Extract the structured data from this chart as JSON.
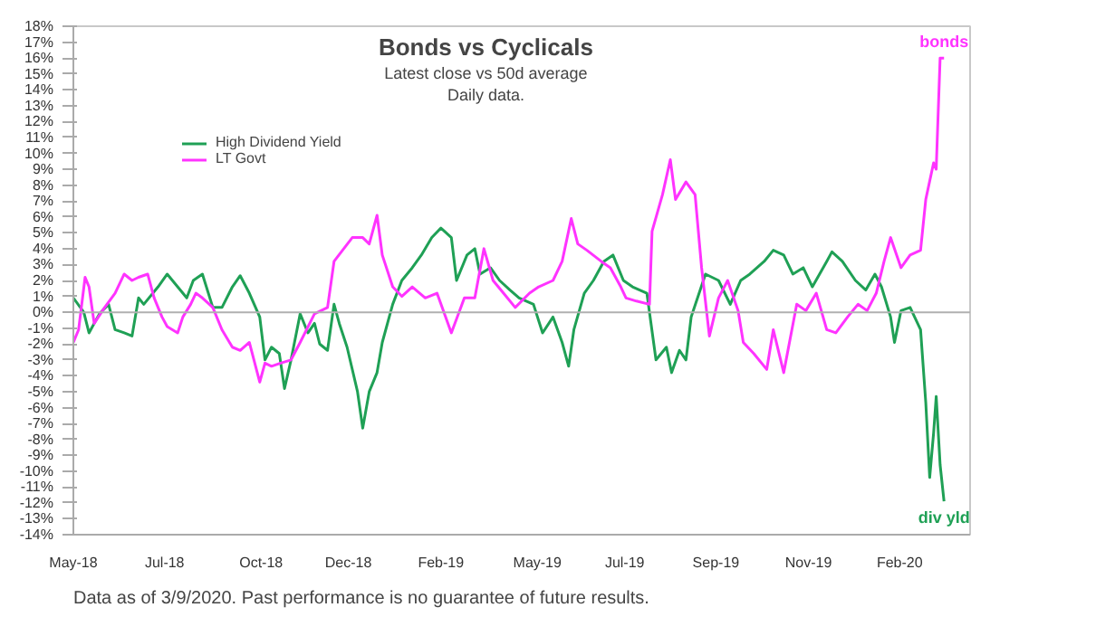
{
  "chart_data": {
    "type": "line",
    "title": "Bonds vs Cyclicals",
    "subtitle": "Latest close vs 50d average\nDaily data.",
    "xlim": [
      "2018-05-10",
      "2020-03-28"
    ],
    "xticks": [
      {
        "value": "2018-05-10",
        "label": "May-18"
      },
      {
        "value": "2018-07-19",
        "label": "Jul-18"
      },
      {
        "value": "2018-10-01",
        "label": "Oct-18"
      },
      {
        "value": "2018-12-07",
        "label": "Dec-18"
      },
      {
        "value": "2019-02-16",
        "label": "Feb-19"
      },
      {
        "value": "2019-05-01",
        "label": "May-19"
      },
      {
        "value": "2019-07-07",
        "label": "Jul-19"
      },
      {
        "value": "2019-09-15",
        "label": "Sep-19"
      },
      {
        "value": "2019-11-25",
        "label": "Nov-19"
      },
      {
        "value": "2020-02-03",
        "label": "Feb-20"
      }
    ],
    "ylim": [
      -14,
      18
    ],
    "yticks": [
      {
        "value": -14,
        "label": "-14%"
      },
      {
        "value": -13,
        "label": "-13%"
      },
      {
        "value": -12,
        "label": "-12%"
      },
      {
        "value": -11,
        "label": "-11%"
      },
      {
        "value": -10,
        "label": "-10%"
      },
      {
        "value": -9,
        "label": "-9%"
      },
      {
        "value": -8,
        "label": "-8%"
      },
      {
        "value": -7,
        "label": "-7%"
      },
      {
        "value": -6,
        "label": "-6%"
      },
      {
        "value": -5,
        "label": "-5%"
      },
      {
        "value": -4,
        "label": "-4%"
      },
      {
        "value": -3,
        "label": "-3%"
      },
      {
        "value": -2,
        "label": "-2%"
      },
      {
        "value": -1,
        "label": "-1%"
      },
      {
        "value": 0,
        "label": "0%"
      },
      {
        "value": 1,
        "label": "1%"
      },
      {
        "value": 2,
        "label": "2%"
      },
      {
        "value": 3,
        "label": "3%"
      },
      {
        "value": 4,
        "label": "4%"
      },
      {
        "value": 5,
        "label": "5%"
      },
      {
        "value": 6,
        "label": "6%"
      },
      {
        "value": 7,
        "label": "7%"
      },
      {
        "value": 8,
        "label": "8%"
      },
      {
        "value": 9,
        "label": "9%"
      },
      {
        "value": 10,
        "label": "10%"
      },
      {
        "value": 11,
        "label": "11%"
      },
      {
        "value": 12,
        "label": "12%"
      },
      {
        "value": 13,
        "label": "13%"
      },
      {
        "value": 14,
        "label": "14%"
      },
      {
        "value": 15,
        "label": "15%"
      },
      {
        "value": 16,
        "label": "16%"
      },
      {
        "value": 17,
        "label": "17%"
      },
      {
        "value": 18,
        "label": "18%"
      }
    ],
    "series": [
      {
        "name": "High Dividend Yield",
        "color": "#1fa055",
        "x": [
          "2018-05-10",
          "2018-05-18",
          "2018-05-22",
          "2018-05-30",
          "2018-06-06",
          "2018-06-11",
          "2018-06-18",
          "2018-06-24",
          "2018-06-29",
          "2018-07-03",
          "2018-07-14",
          "2018-07-21",
          "2018-07-29",
          "2018-08-05",
          "2018-08-10",
          "2018-08-17",
          "2018-08-25",
          "2018-09-01",
          "2018-09-09",
          "2018-09-15",
          "2018-09-22",
          "2018-09-30",
          "2018-10-04",
          "2018-10-09",
          "2018-10-15",
          "2018-10-19",
          "2018-10-24",
          "2018-10-31",
          "2018-11-06",
          "2018-11-11",
          "2018-11-15",
          "2018-11-21",
          "2018-11-26",
          "2018-11-30",
          "2018-12-06",
          "2018-12-14",
          "2018-12-18",
          "2018-12-23",
          "2018-12-29",
          "2019-01-02",
          "2019-01-10",
          "2019-01-17",
          "2019-01-25",
          "2019-02-01",
          "2019-02-09",
          "2019-02-16",
          "2019-02-24",
          "2019-02-28",
          "2019-03-08",
          "2019-03-14",
          "2019-03-18",
          "2019-03-26",
          "2019-04-02",
          "2019-04-10",
          "2019-04-17",
          "2019-04-28",
          "2019-05-05",
          "2019-05-13",
          "2019-05-20",
          "2019-05-25",
          "2019-05-29",
          "2019-06-06",
          "2019-06-13",
          "2019-06-21",
          "2019-06-28",
          "2019-07-06",
          "2019-07-13",
          "2019-07-24",
          "2019-07-31",
          "2019-08-08",
          "2019-08-12",
          "2019-08-18",
          "2019-08-23",
          "2019-08-27",
          "2019-09-07",
          "2019-09-17",
          "2019-09-26",
          "2019-10-04",
          "2019-10-11",
          "2019-10-22",
          "2019-10-29",
          "2019-11-06",
          "2019-11-13",
          "2019-11-21",
          "2019-11-28",
          "2019-12-09",
          "2019-12-13",
          "2019-12-21",
          "2019-12-31",
          "2020-01-08",
          "2020-01-15",
          "2020-01-20",
          "2020-01-27",
          "2020-01-30",
          "2020-02-04",
          "2020-02-11",
          "2020-02-19",
          "2020-02-23",
          "2020-02-26",
          "2020-02-29",
          "2020-03-02",
          "2020-03-05",
          "2020-03-08"
        ],
        "values": [
          0.9,
          0,
          -1.3,
          -0.1,
          0.5,
          -1.1,
          -1.3,
          -1.5,
          0.9,
          0.5,
          1.6,
          2.4,
          1.6,
          0.9,
          2.0,
          2.4,
          0.3,
          0.3,
          1.6,
          2.3,
          1.2,
          -0.3,
          -3.0,
          -2.2,
          -2.6,
          -4.8,
          -3.0,
          -0.1,
          -1.3,
          -0.7,
          -2.0,
          -2.4,
          0.5,
          -0.7,
          -2.2,
          -5.0,
          -7.3,
          -5.0,
          -3.8,
          -1.9,
          0.5,
          2.0,
          2.8,
          3.6,
          4.7,
          5.3,
          4.7,
          2.0,
          3.6,
          4.0,
          2.4,
          2.8,
          2.0,
          1.4,
          0.9,
          0.5,
          -1.3,
          -0.3,
          -1.9,
          -3.4,
          -1.1,
          1.2,
          2.0,
          3.2,
          3.6,
          2.0,
          1.6,
          1.2,
          -3.0,
          -2.2,
          -3.8,
          -2.4,
          -3.0,
          -0.3,
          2.4,
          2.0,
          0.5,
          2.0,
          2.4,
          3.2,
          3.9,
          3.6,
          2.4,
          2.8,
          1.6,
          3.2,
          3.8,
          3.2,
          2.0,
          1.4,
          2.4,
          1.6,
          -0.3,
          -1.9,
          0.1,
          0.3,
          -1.1,
          -5.7,
          -10.4,
          -7.6,
          -5.3,
          -9.6,
          -11.9
        ]
      },
      {
        "name": "LT Govt",
        "color": "#ff33ff",
        "x": [
          "2018-05-10",
          "2018-05-14",
          "2018-05-19",
          "2018-05-22",
          "2018-05-26",
          "2018-06-03",
          "2018-06-11",
          "2018-06-18",
          "2018-06-24",
          "2018-06-29",
          "2018-07-06",
          "2018-07-11",
          "2018-07-17",
          "2018-07-21",
          "2018-07-29",
          "2018-08-02",
          "2018-08-08",
          "2018-08-12",
          "2018-08-17",
          "2018-08-25",
          "2018-09-01",
          "2018-09-09",
          "2018-09-15",
          "2018-09-22",
          "2018-09-30",
          "2018-10-04",
          "2018-10-09",
          "2018-10-16",
          "2018-10-24",
          "2018-10-31",
          "2018-11-11",
          "2018-11-21",
          "2018-11-26",
          "2018-12-10",
          "2018-12-18",
          "2018-12-23",
          "2018-12-29",
          "2019-01-02",
          "2019-01-10",
          "2019-01-17",
          "2019-01-25",
          "2019-02-04",
          "2019-02-13",
          "2019-02-24",
          "2019-03-06",
          "2019-03-14",
          "2019-03-21",
          "2019-03-28",
          "2019-04-05",
          "2019-04-14",
          "2019-04-25",
          "2019-05-02",
          "2019-05-13",
          "2019-05-20",
          "2019-05-27",
          "2019-06-01",
          "2019-06-08",
          "2019-06-19",
          "2019-06-26",
          "2019-07-04",
          "2019-07-08",
          "2019-07-16",
          "2019-07-26",
          "2019-07-28",
          "2019-08-05",
          "2019-08-11",
          "2019-08-15",
          "2019-08-23",
          "2019-08-30",
          "2019-09-04",
          "2019-09-10",
          "2019-09-17",
          "2019-09-24",
          "2019-10-02",
          "2019-10-06",
          "2019-10-14",
          "2019-10-24",
          "2019-10-29",
          "2019-11-06",
          "2019-11-16",
          "2019-11-23",
          "2019-12-01",
          "2019-12-09",
          "2019-12-16",
          "2019-12-25",
          "2020-01-02",
          "2020-01-09",
          "2020-01-16",
          "2020-01-22",
          "2020-01-27",
          "2020-02-04",
          "2020-02-11",
          "2020-02-19",
          "2020-02-23",
          "2020-02-29",
          "2020-03-02",
          "2020-03-05",
          "2020-03-08"
        ],
        "values": [
          -1.9,
          -1.1,
          2.2,
          1.6,
          -0.7,
          0.3,
          1.2,
          2.4,
          2.0,
          2.2,
          2.4,
          0.9,
          -0.3,
          -0.9,
          -1.3,
          -0.3,
          0.5,
          1.2,
          0.9,
          0.3,
          -1.1,
          -2.2,
          -2.4,
          -1.9,
          -4.4,
          -3.2,
          -3.4,
          -3.2,
          -3.0,
          -1.9,
          -0.1,
          0.3,
          3.2,
          4.7,
          4.7,
          4.3,
          6.1,
          3.6,
          1.6,
          1.0,
          1.6,
          0.9,
          1.2,
          -1.3,
          0.9,
          0.9,
          4.0,
          2.0,
          1.2,
          0.3,
          1.2,
          1.6,
          2.0,
          3.2,
          5.9,
          4.3,
          3.9,
          3.2,
          2.8,
          1.6,
          0.9,
          0.7,
          0.5,
          5.1,
          7.4,
          9.6,
          7.1,
          8.2,
          7.4,
          2.8,
          -1.5,
          0.9,
          2.0,
          0.1,
          -1.9,
          -2.6,
          -3.6,
          -1.1,
          -3.8,
          0.5,
          0.1,
          1.2,
          -1.1,
          -1.3,
          -0.3,
          0.5,
          0.1,
          1.2,
          3.2,
          4.7,
          2.8,
          3.6,
          3.9,
          7.1,
          9.4,
          9.0,
          16.0,
          16.0
        ]
      }
    ],
    "ref_lines": [
      {
        "axis": "y",
        "value": 0,
        "color": "#b0b0b0"
      }
    ],
    "annotations": [
      "div yld",
      "bonds",
      "Data as of 3/9/2020. Past performance is no guarantee of future results."
    ],
    "legend": "top left",
    "grid": false,
    "marker": "none",
    "line_style": "solid"
  }
}
